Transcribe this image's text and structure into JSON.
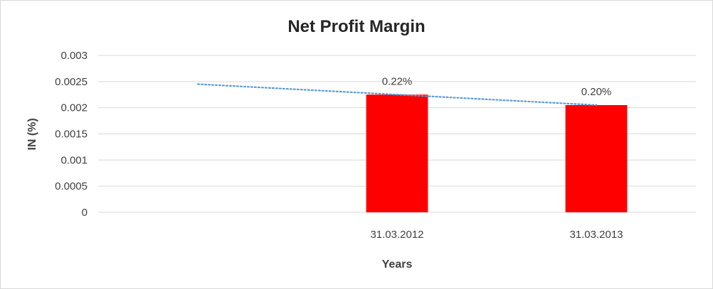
{
  "chart_data": {
    "type": "bar",
    "title": "Net Profit Margin",
    "xlabel": "Years",
    "ylabel": "IN (%)",
    "categories": [
      "",
      "31.03.2012",
      "31.03.2013"
    ],
    "values": [
      null,
      0.00225,
      0.00205
    ],
    "data_labels": [
      "",
      "0.22%",
      "0.20%"
    ],
    "ylim": [
      0,
      0.003
    ],
    "yticks": [
      "0",
      "0.0005",
      "0.001",
      "0.0015",
      "0.002",
      "0.0025",
      "0.003"
    ],
    "ytick_values": [
      0,
      0.0005,
      0.001,
      0.0015,
      0.002,
      0.0025,
      0.003
    ],
    "grid": true,
    "legend": "none",
    "bar_color": "#ff0000",
    "trendline": {
      "type": "linear",
      "style": "dotted",
      "color": "#5b9bd5",
      "points": [
        0.00245,
        0.00225,
        0.00205
      ]
    }
  }
}
